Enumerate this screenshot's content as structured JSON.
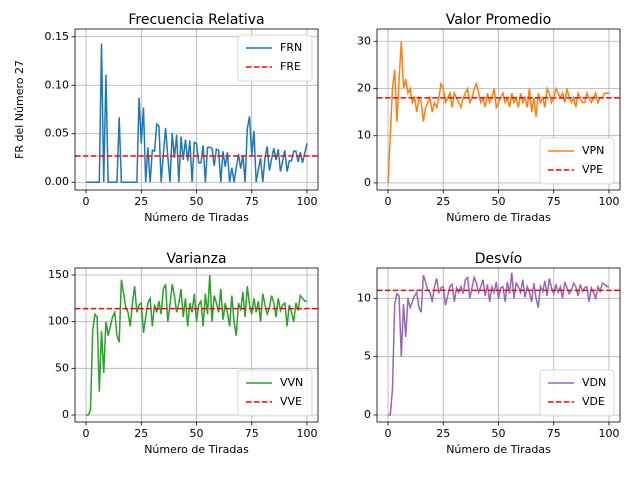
{
  "chart_data": [
    {
      "type": "line",
      "title": "Frecuencia Relativa",
      "xlabel": "Número de Tiradas",
      "ylabel": "FR del Número 27",
      "x": [
        0,
        1,
        2,
        3,
        4,
        5,
        6,
        7,
        8,
        9,
        10,
        11,
        12,
        13,
        14,
        15,
        16,
        17,
        18,
        19,
        20,
        21,
        22,
        23,
        24,
        25,
        26,
        27,
        28,
        29,
        30,
        31,
        32,
        33,
        34,
        35,
        36,
        37,
        38,
        39,
        40,
        41,
        42,
        43,
        44,
        45,
        46,
        47,
        48,
        49,
        50,
        51,
        52,
        53,
        54,
        55,
        56,
        57,
        58,
        59,
        60,
        61,
        62,
        63,
        64,
        65,
        66,
        67,
        68,
        69,
        70,
        71,
        72,
        73,
        74,
        75,
        76,
        77,
        78,
        79,
        80,
        81,
        82,
        83,
        84,
        85,
        86,
        87,
        88,
        89,
        90,
        91,
        92,
        93,
        94,
        95,
        96,
        97,
        98,
        99,
        100
      ],
      "series": [
        {
          "name": "FRN",
          "color": "#1f77b4",
          "values": [
            0,
            0,
            0,
            0,
            0,
            0,
            0,
            0.143,
            0,
            0.111,
            0,
            0,
            0,
            0,
            0,
            0.067,
            0,
            0,
            0,
            0,
            0,
            0,
            0,
            0,
            0.087,
            0.04,
            0.077,
            0,
            0.036,
            0,
            0.033,
            0.032,
            0.06,
            0.058,
            0,
            0.029,
            0.056,
            0.027,
            0,
            0.051,
            0.025,
            0.049,
            0,
            0.047,
            0.023,
            0.044,
            0.022,
            0.043,
            0,
            0.041,
            0.04,
            0.02,
            0.02,
            0.038,
            0,
            0.036,
            0.036,
            0.035,
            0.017,
            0.034,
            0.033,
            0,
            0.032,
            0.016,
            0.031,
            0,
            0.015,
            0,
            0.015,
            0.029,
            0.014,
            0.028,
            0,
            0.055,
            0.068,
            0.027,
            0.053,
            0,
            0.013,
            0.025,
            0,
            0.025,
            0.037,
            0.012,
            0.024,
            0.035,
            0.023,
            0.034,
            0.011,
            0.022,
            0.033,
            0.011,
            0.022,
            0.022,
            0.032,
            0.032,
            0.021,
            0.031,
            0.02,
            0.03,
            0.04
          ]
        }
      ],
      "hlines": [
        {
          "name": "FRE",
          "color": "#ff0000",
          "style": "dashed",
          "value": 0.027
        }
      ],
      "xlim": [
        -5,
        105
      ],
      "ylim": [
        -0.008,
        0.158
      ],
      "xticks": [
        0,
        25,
        50,
        75,
        100
      ],
      "yticks": [
        {
          "value": 0,
          "label": "0.00"
        },
        {
          "value": 0.05,
          "label": "0.05"
        },
        {
          "value": 0.1,
          "label": "0.10"
        },
        {
          "value": 0.15,
          "label": "0.15"
        }
      ],
      "grid": true,
      "legend": "upper right"
    },
    {
      "type": "line",
      "title": "Valor Promedio",
      "xlabel": "Número de Tiradas",
      "x": [
        0,
        1,
        2,
        3,
        4,
        5,
        6,
        7,
        8,
        9,
        10,
        11,
        12,
        13,
        14,
        15,
        16,
        17,
        18,
        19,
        20,
        21,
        22,
        23,
        24,
        25,
        26,
        27,
        28,
        29,
        30,
        31,
        32,
        33,
        34,
        35,
        36,
        37,
        38,
        39,
        40,
        41,
        42,
        43,
        44,
        45,
        46,
        47,
        48,
        49,
        50,
        51,
        52,
        53,
        54,
        55,
        56,
        57,
        58,
        59,
        60,
        61,
        62,
        63,
        64,
        65,
        66,
        67,
        68,
        69,
        70,
        71,
        72,
        73,
        74,
        75,
        76,
        77,
        78,
        79,
        80,
        81,
        82,
        83,
        84,
        85,
        86,
        87,
        88,
        89,
        90,
        91,
        92,
        93,
        94,
        95,
        96,
        97,
        98,
        99,
        100
      ],
      "series": [
        {
          "name": "VPN",
          "color": "#ff7f0e",
          "values": [
            0,
            10,
            20,
            24,
            13,
            22,
            30,
            20,
            22,
            19,
            20,
            17,
            18,
            15,
            18,
            17,
            13,
            16,
            17,
            18,
            15,
            17,
            16,
            18,
            21,
            20,
            17,
            18,
            19,
            16,
            19,
            18,
            17,
            16,
            18,
            19,
            20,
            17,
            18,
            20,
            21,
            19,
            17,
            18,
            16,
            19,
            17,
            18,
            20,
            16,
            17,
            18,
            19,
            17,
            18,
            16,
            19,
            17,
            18,
            16,
            19,
            17,
            18,
            16,
            20,
            15,
            18,
            14,
            19,
            17,
            18,
            16,
            20,
            19,
            17,
            18,
            20,
            19,
            18,
            19,
            17,
            20,
            18,
            17,
            18,
            16,
            19,
            18,
            17,
            17,
            19,
            18,
            17,
            18,
            19,
            17,
            18,
            18,
            19,
            19,
            19
          ]
        }
      ],
      "hlines": [
        {
          "name": "VPE",
          "color": "#ff0000",
          "style": "dashed",
          "value": 18
        }
      ],
      "xlim": [
        -5,
        105
      ],
      "ylim": [
        -1.5,
        32.6
      ],
      "xticks": [
        0,
        25,
        50,
        75,
        100
      ],
      "yticks": [
        0,
        10,
        20,
        30
      ],
      "grid": true,
      "legend": "lower right"
    },
    {
      "type": "line",
      "title": "Varianza",
      "xlabel": "Número de Tiradas",
      "x": [
        0,
        1,
        2,
        3,
        4,
        5,
        6,
        7,
        8,
        9,
        10,
        11,
        12,
        13,
        14,
        15,
        16,
        17,
        18,
        19,
        20,
        21,
        22,
        23,
        24,
        25,
        26,
        27,
        28,
        29,
        30,
        31,
        32,
        33,
        34,
        35,
        36,
        37,
        38,
        39,
        40,
        41,
        42,
        43,
        44,
        45,
        46,
        47,
        48,
        49,
        50,
        51,
        52,
        53,
        54,
        55,
        56,
        57,
        58,
        59,
        60,
        61,
        62,
        63,
        64,
        65,
        66,
        67,
        68,
        69,
        70,
        71,
        72,
        73,
        74,
        75,
        76,
        77,
        78,
        79,
        80,
        81,
        82,
        83,
        84,
        85,
        86,
        87,
        88,
        89,
        90,
        91,
        92,
        93,
        94,
        95,
        96,
        97,
        98,
        99,
        100
      ],
      "series": [
        {
          "name": "VVN",
          "color": "#2ca02c",
          "values": [
            0,
            0,
            5,
            90,
            108,
            105,
            25,
            90,
            45,
            100,
            85,
            95,
            105,
            110,
            85,
            78,
            145,
            130,
            115,
            110,
            95,
            120,
            138,
            110,
            118,
            120,
            88,
            105,
            120,
            125,
            95,
            118,
            110,
            122,
            108,
            135,
            140,
            100,
            118,
            140,
            128,
            110,
            120,
            135,
            105,
            125,
            95,
            120,
            110,
            130,
            100,
            118,
            122,
            95,
            130,
            108,
            150,
            100,
            128,
            120,
            110,
            135,
            102,
            120,
            110,
            95,
            128,
            100,
            85,
            120,
            112,
            132,
            105,
            138,
            118,
            108,
            125,
            110,
            122,
            100,
            130,
            118,
            108,
            115,
            128,
            120,
            105,
            125,
            112,
            118,
            120,
            95,
            118,
            110,
            100,
            120,
            112,
            128,
            125,
            122,
            122
          ]
        }
      ],
      "hlines": [
        {
          "name": "VVE",
          "color": "#ff0000",
          "style": "dashed",
          "value": 114
        }
      ],
      "xlim": [
        -5,
        105
      ],
      "ylim": [
        -7.5,
        157.5
      ],
      "xticks": [
        0,
        25,
        50,
        75,
        100
      ],
      "yticks": [
        0,
        50,
        100,
        150
      ],
      "grid": true,
      "legend": "lower right"
    },
    {
      "type": "line",
      "title": "Desvío",
      "xlabel": "Número de Tiradas",
      "x": [
        0,
        1,
        2,
        3,
        4,
        5,
        6,
        7,
        8,
        9,
        10,
        11,
        12,
        13,
        14,
        15,
        16,
        17,
        18,
        19,
        20,
        21,
        22,
        23,
        24,
        25,
        26,
        27,
        28,
        29,
        30,
        31,
        32,
        33,
        34,
        35,
        36,
        37,
        38,
        39,
        40,
        41,
        42,
        43,
        44,
        45,
        46,
        47,
        48,
        49,
        50,
        51,
        52,
        53,
        54,
        55,
        56,
        57,
        58,
        59,
        60,
        61,
        62,
        63,
        64,
        65,
        66,
        67,
        68,
        69,
        70,
        71,
        72,
        73,
        74,
        75,
        76,
        77,
        78,
        79,
        80,
        81,
        82,
        83,
        84,
        85,
        86,
        87,
        88,
        89,
        90,
        91,
        92,
        93,
        94,
        95,
        96,
        97,
        98,
        99,
        100
      ],
      "series": [
        {
          "name": "VDN",
          "color": "#9467bd",
          "values": [
            0,
            0,
            2.2,
            9.5,
            10.4,
            10.2,
            5,
            9.5,
            6.7,
            10,
            9.2,
            9.7,
            10.2,
            10.5,
            9.2,
            8.8,
            12,
            11.4,
            10.7,
            10.5,
            9.7,
            11,
            11.7,
            10.5,
            10.9,
            11,
            9.4,
            10.2,
            11,
            11.2,
            9.7,
            10.9,
            10.5,
            11,
            10.4,
            11.6,
            11.8,
            10,
            10.9,
            11.8,
            11.3,
            10.5,
            11,
            11.6,
            10.2,
            11.2,
            9.7,
            11,
            10.5,
            11.4,
            10,
            10.9,
            11,
            9.7,
            11.4,
            10.4,
            12.2,
            10,
            11.3,
            11,
            10.5,
            11.6,
            10.1,
            11,
            10.5,
            9.7,
            11.3,
            10,
            9.2,
            11,
            10.6,
            11.5,
            10.2,
            11.7,
            10.9,
            10.4,
            11.2,
            10.5,
            11,
            10,
            11.4,
            10.9,
            10.4,
            10.7,
            11.3,
            11,
            10.2,
            11.2,
            10.6,
            10.9,
            11,
            9.7,
            10.9,
            10.5,
            10,
            11,
            10.6,
            11.3,
            11.2,
            11,
            11
          ]
        }
      ],
      "hlines": [
        {
          "name": "VDE",
          "color": "#ff0000",
          "style": "dashed",
          "value": 10.68
        }
      ],
      "xlim": [
        -5,
        105
      ],
      "ylim": [
        -0.6,
        12.6
      ],
      "xticks": [
        0,
        25,
        50,
        75,
        100
      ],
      "yticks": [
        0,
        5,
        10
      ],
      "grid": true,
      "legend": "lower right"
    }
  ]
}
